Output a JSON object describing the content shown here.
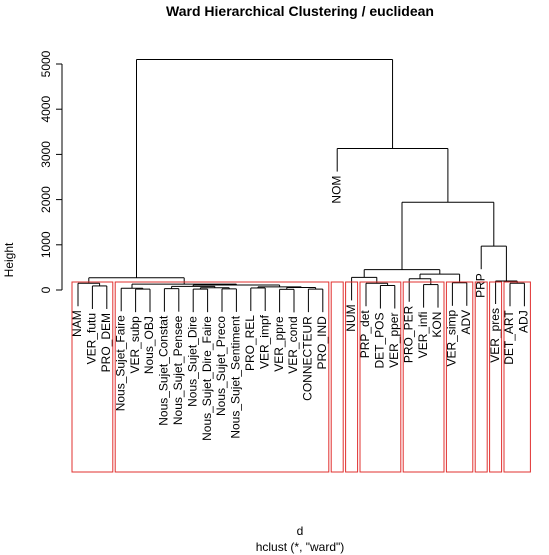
{
  "chart_data": {
    "type": "dendrogram",
    "title": "Ward Hierarchical Clustering / euclidean",
    "y_label": "Height",
    "x_label": "d",
    "subtitle": "hclust (*, \"ward\")",
    "ylim": [
      0,
      5000
    ],
    "yticks": [
      0,
      1000,
      2000,
      3000,
      4000,
      5000
    ],
    "line_color": "#000000",
    "box_color": "#e0302f",
    "tree": {
      "height": 5100,
      "children": [
        {
          "height": 270,
          "children": [
            {
              "height": 150,
              "box": true,
              "children": [
                {
                  "label": "NAM"
                },
                {
                  "height": 90,
                  "children": [
                    {
                      "label": "VER_futu"
                    },
                    {
                      "label": "PRO_DEM"
                    }
                  ]
                }
              ]
            },
            {
              "height": 130,
              "box": true,
              "children": [
                {
                  "height": 40,
                  "children": [
                    {
                      "label": "Nous_Sujet_Faire"
                    },
                    {
                      "height": 20,
                      "children": [
                        {
                          "label": "VER_subp"
                        },
                        {
                          "label": "Nous_OBJ"
                        }
                      ]
                    }
                  ]
                },
                {
                  "height": 110,
                  "children": [
                    {
                      "height": 80,
                      "children": [
                        {
                          "height": 30,
                          "children": [
                            {
                              "label": "Nous_Sujet_Constat"
                            },
                            {
                              "label": "Nous_Sujet_Pensee"
                            }
                          ]
                        },
                        {
                          "height": 50,
                          "children": [
                            {
                              "height": 20,
                              "children": [
                                {
                                  "label": "Nous_Sujet_Dire"
                                },
                                {
                                  "label": "Nous_Sujet_Dire_Faire"
                                }
                              ]
                            },
                            {
                              "height": 25,
                              "children": [
                                {
                                  "label": "Nous_Sujet_Preco"
                                },
                                {
                                  "label": "Nous_Sujet_Sentiment"
                                }
                              ]
                            }
                          ]
                        }
                      ]
                    },
                    {
                      "height": 70,
                      "children": [
                        {
                          "height": 45,
                          "children": [
                            {
                              "label": "PRO_REL"
                            },
                            {
                              "label": "VER_impf"
                            }
                          ]
                        },
                        {
                          "height": 55,
                          "children": [
                            {
                              "height": 15,
                              "children": [
                                {
                                  "label": "VER_ppre"
                                },
                                {
                                  "label": "VER_cond"
                                }
                              ]
                            },
                            {
                              "height": 20,
                              "children": [
                                {
                                  "label": "CONNECTEUR"
                                },
                                {
                                  "label": "PRO_IND"
                                }
                              ]
                            }
                          ]
                        }
                      ]
                    }
                  ]
                }
              ]
            }
          ]
        },
        {
          "height": 3130,
          "children": [
            {
              "label": "NOM",
              "box": true
            },
            {
              "height": 1940,
              "children": [
                {
                  "height": 450,
                  "children": [
                    {
                      "height": 280,
                      "children": [
                        {
                          "label": "NUM",
                          "box": true
                        },
                        {
                          "height": 150,
                          "box": true,
                          "children": [
                            {
                              "label": "PRP_det"
                            },
                            {
                              "height": 100,
                              "children": [
                                {
                                  "label": "DET_POS"
                                },
                                {
                                  "label": "VER_pper"
                                }
                              ]
                            }
                          ]
                        }
                      ]
                    },
                    {
                      "height": 350,
                      "children": [
                        {
                          "height": 250,
                          "box": true,
                          "children": [
                            {
                              "label": "PRO_PER"
                            },
                            {
                              "height": 120,
                              "children": [
                                {
                                  "label": "VER_infi"
                                },
                                {
                                  "label": "KON"
                                }
                              ]
                            }
                          ]
                        },
                        {
                          "height": 160,
                          "box": true,
                          "children": [
                            {
                              "label": "VER_simp"
                            },
                            {
                              "label": "ADV"
                            }
                          ]
                        }
                      ]
                    }
                  ]
                },
                {
                  "height": 970,
                  "children": [
                    {
                      "label": "PRP",
                      "box": true
                    },
                    {
                      "height": 200,
                      "children": [
                        {
                          "label": "VER_pres",
                          "box": true
                        },
                        {
                          "height": 150,
                          "box": true,
                          "children": [
                            {
                              "label": "DET_ART"
                            },
                            {
                              "label": "ADJ"
                            }
                          ]
                        }
                      ]
                    }
                  ]
                }
              ]
            }
          ]
        }
      ]
    }
  }
}
